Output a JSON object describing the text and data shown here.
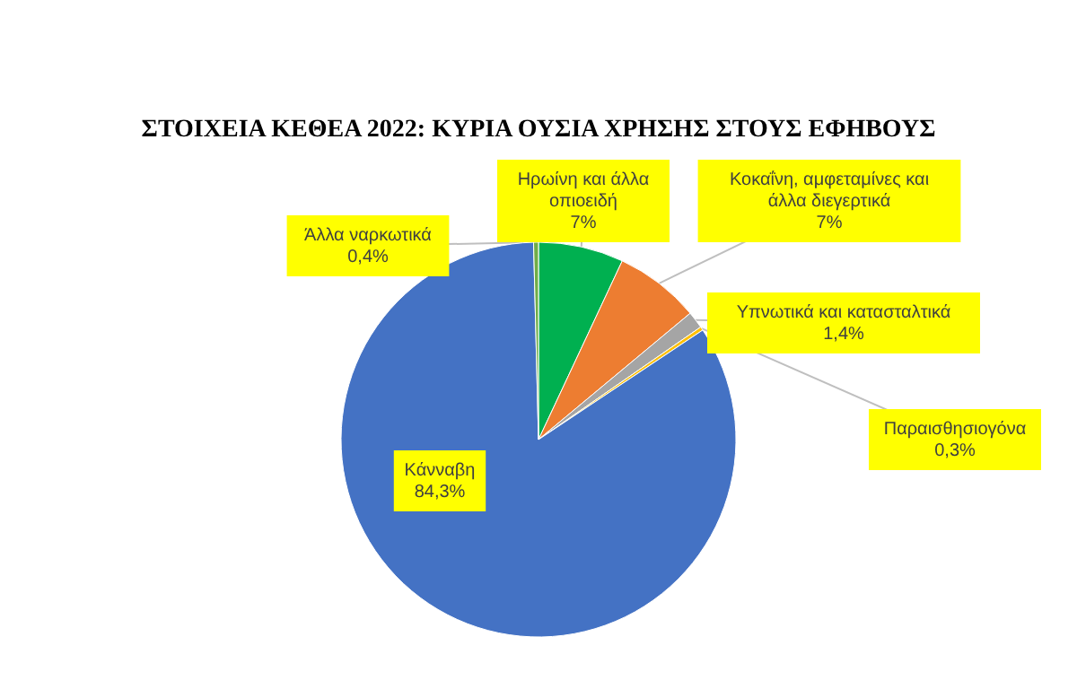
{
  "chart_data": {
    "type": "pie",
    "title": "ΣΤΟΙΧΕΙΑ ΚΕΘΕΑ 2022: ΚΥΡΙΑ ΟΥΣΙΑ ΧΡΗΣΗΣ ΣΤΟΥΣ ΕΦΗΒΟΥΣ",
    "categories": [
      "Ηρωίνη και άλλα οπιοειδή",
      "Κοκαΐνη, αμφεταμίνες και άλλα διεγερτικά",
      "Υπνωτικά και κατασταλτικά",
      "Παραισθησιογόνα",
      "Κάνναβη",
      "Άλλα ναρκωτικά"
    ],
    "values": [
      7,
      7,
      1.4,
      0.3,
      84.3,
      0.4
    ],
    "value_labels": [
      "7%",
      "7%",
      "1,4%",
      "0,3%",
      "84,3%",
      "0,4%"
    ],
    "colors": [
      "#00b050",
      "#ed7d31",
      "#a5a5a5",
      "#ffc000",
      "#4472c4",
      "#70ad47"
    ]
  }
}
